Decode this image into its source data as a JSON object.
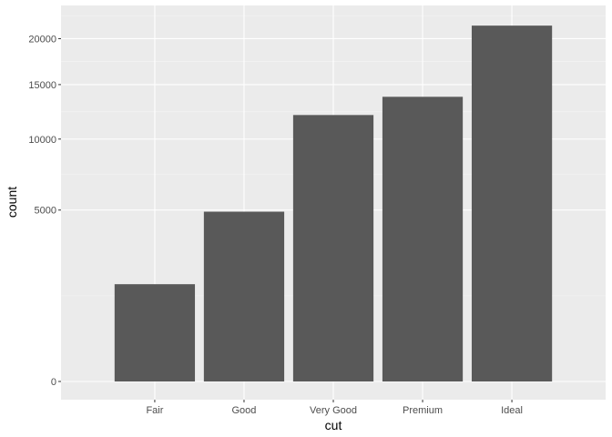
{
  "chart_data": {
    "type": "bar",
    "title": "",
    "xlabel": "cut",
    "ylabel": "count",
    "categories": [
      "Fair",
      "Good",
      "Very Good",
      "Premium",
      "Ideal"
    ],
    "values": [
      1610,
      4906,
      12082,
      13791,
      21551
    ],
    "y_scale": "sqrt",
    "ylim": [
      0,
      23000
    ],
    "y_ticks": [
      0,
      5000,
      10000,
      15000,
      20000
    ],
    "grid": true,
    "legend": "none",
    "colors": {
      "bar": "#595959",
      "panel": "#ebebeb",
      "grid_major": "#ffffff",
      "grid_minor": "#f5f5f5"
    }
  }
}
